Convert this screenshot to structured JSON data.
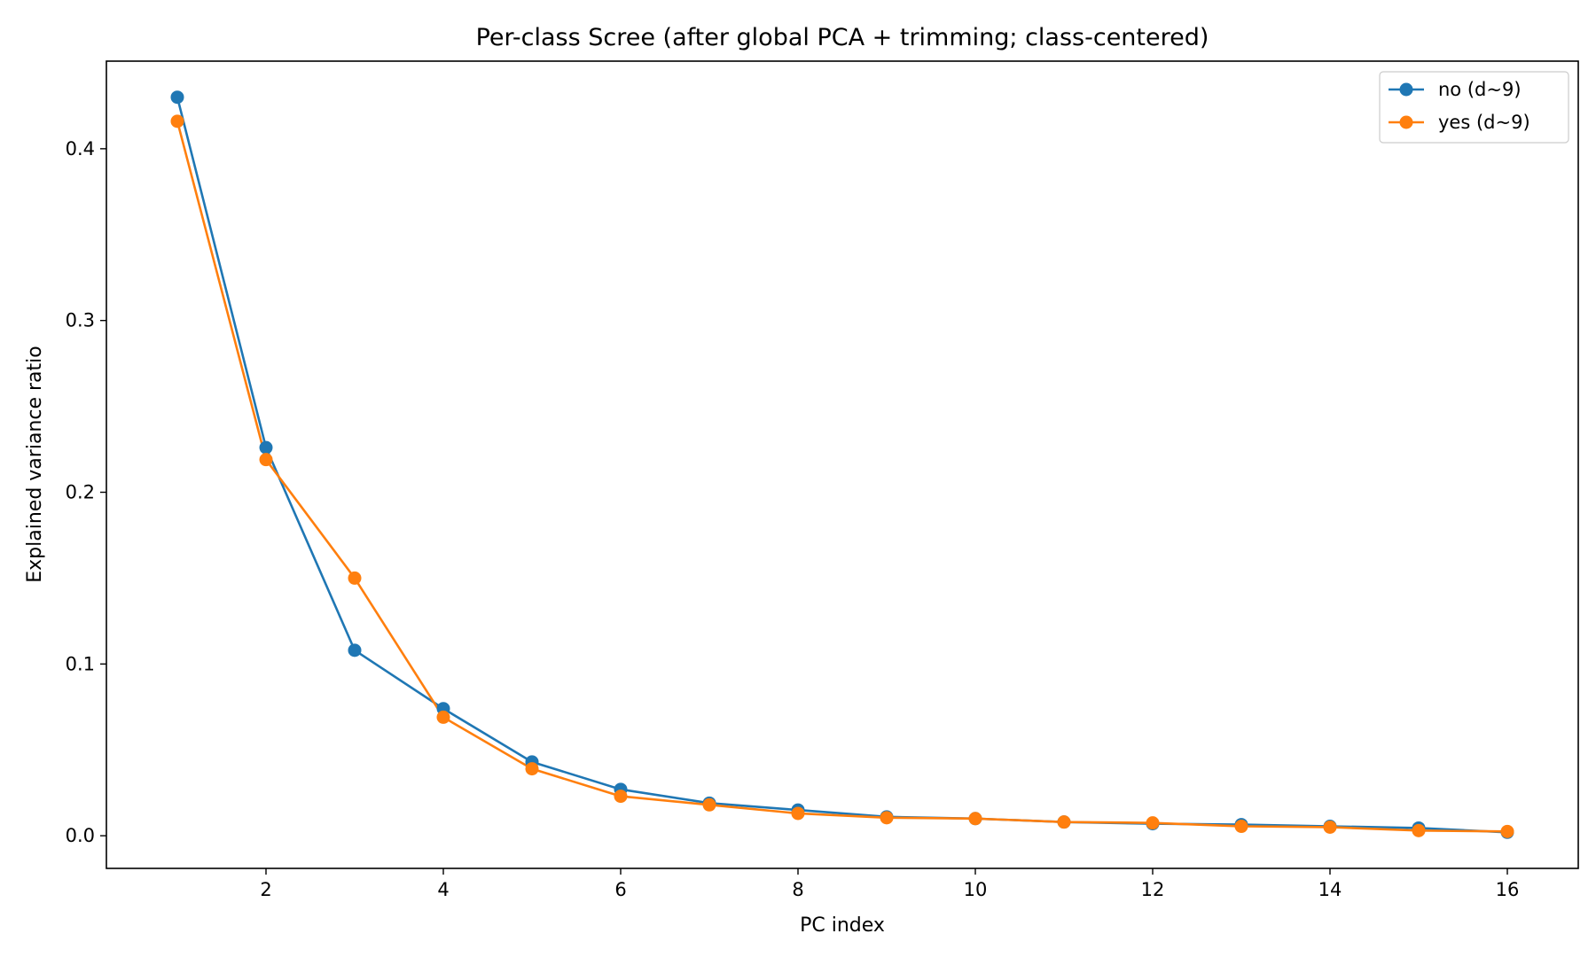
{
  "chart_data": {
    "type": "line",
    "title": "Per-class Scree (after global PCA + trimming; class-centered)",
    "xlabel": "PC index",
    "ylabel": "Explained variance ratio",
    "xlim": [
      0.2,
      16.8
    ],
    "ylim": [
      -0.019,
      0.451
    ],
    "xticks": [
      2,
      4,
      6,
      8,
      10,
      12,
      14,
      16
    ],
    "yticks": [
      0.0,
      0.1,
      0.2,
      0.3,
      0.4
    ],
    "ytick_labels": [
      "0.0",
      "0.1",
      "0.2",
      "0.3",
      "0.4"
    ],
    "grid": false,
    "legend_position": "top-right",
    "x": [
      1,
      2,
      3,
      4,
      5,
      6,
      7,
      8,
      9,
      10,
      11,
      12,
      13,
      14,
      15,
      16
    ],
    "series": [
      {
        "name": "no (d~9)",
        "color": "#1f77b4",
        "values": [
          0.43,
          0.226,
          0.108,
          0.074,
          0.043,
          0.027,
          0.019,
          0.015,
          0.011,
          0.01,
          0.008,
          0.007,
          0.0065,
          0.0055,
          0.0045,
          0.002
        ]
      },
      {
        "name": "yes (d~9)",
        "color": "#ff7f0e",
        "values": [
          0.416,
          0.219,
          0.15,
          0.069,
          0.039,
          0.023,
          0.018,
          0.013,
          0.0105,
          0.01,
          0.008,
          0.0075,
          0.0055,
          0.005,
          0.003,
          0.0025
        ]
      }
    ]
  }
}
